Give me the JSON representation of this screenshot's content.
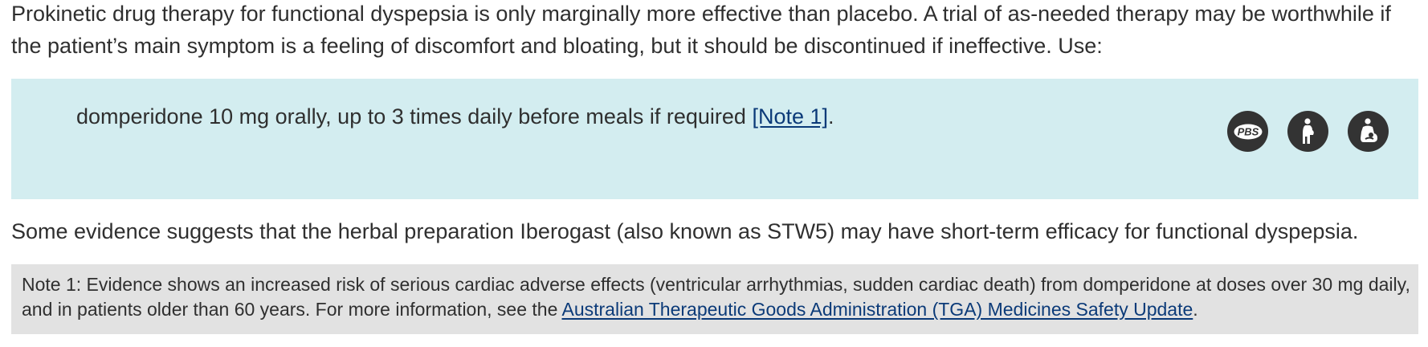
{
  "intro": {
    "text": "Prokinetic drug therapy for functional dyspepsia is only marginally more effective than placebo. A trial of as-needed therapy may be worthwhile if the patient’s main symptom is a feeling of discomfort and bloating, but it should be discontinued if ineffective. Use:"
  },
  "drug": {
    "text": "domperidone 10 mg orally, up to 3 times daily before meals if required ",
    "note_link": "[Note 1]",
    "end": ".",
    "icons": [
      {
        "name": "pbs-icon",
        "label": "PBS"
      },
      {
        "name": "pregnancy-icon"
      },
      {
        "name": "breastfeeding-icon"
      }
    ]
  },
  "evidence": {
    "text": "Some evidence suggests that the herbal preparation Iberogast (also known as STW5) may have short-term efficacy for functional dyspepsia."
  },
  "note": {
    "text": "Note 1: Evidence shows an increased risk of serious cardiac adverse effects (ventricular arrhythmias, sudden cardiac death) from domperidone at doses over 30 mg daily, and in patients older than 60 years. For more information, see the ",
    "link": "Australian Therapeutic Goods Administration (TGA) Medicines Safety Update",
    "end": "."
  },
  "colors": {
    "drug_box": "#d3edf0",
    "note_box": "#e2e2e2",
    "link": "#0b3a78",
    "icon": "#333333"
  }
}
